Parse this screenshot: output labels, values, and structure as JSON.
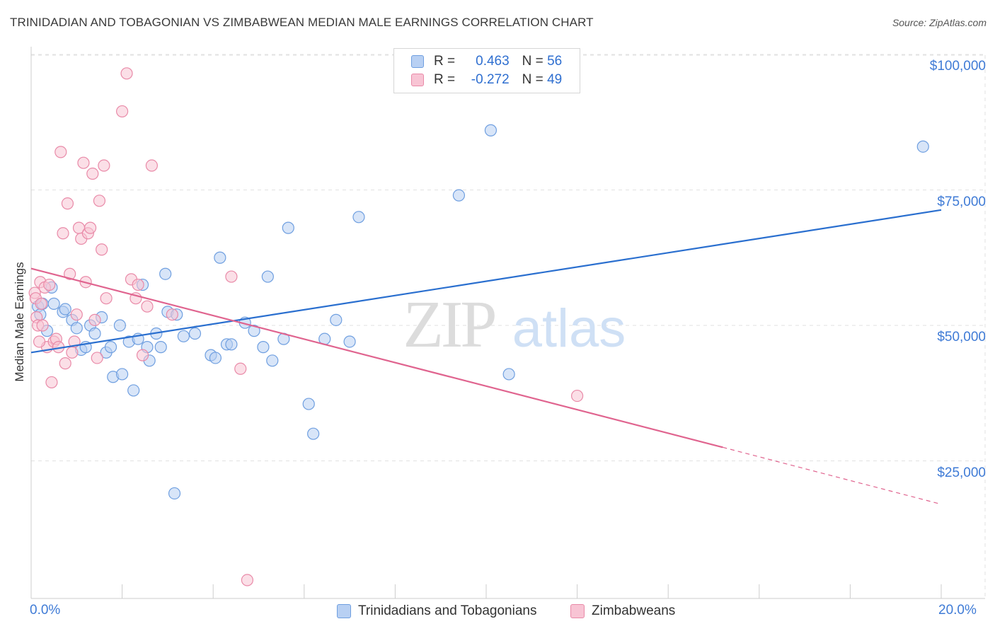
{
  "title": "TRINIDADIAN AND TOBAGONIAN VS ZIMBABWEAN MEDIAN MALE EARNINGS CORRELATION CHART",
  "source": "Source: ZipAtlas.com",
  "watermark": {
    "zip": "ZIP",
    "atlas": "atlas"
  },
  "legend": {
    "r_label": "R =",
    "n_label": "N =",
    "rows": [
      {
        "r": "0.463",
        "n": "56"
      },
      {
        "r": "-0.272",
        "n": "49"
      }
    ]
  },
  "colors": {
    "blue_fill": "#b8d0f3",
    "blue_stroke": "#6f9fe0",
    "blue_line": "#2a6fcf",
    "pink_fill": "#f8c4d4",
    "pink_stroke": "#e98aa8",
    "pink_line": "#e0648f",
    "grid": "#e2e2e2",
    "tick_label": "#3f7bd6"
  },
  "chart_data": {
    "type": "scatter",
    "title": "TRINIDADIAN AND TOBAGONIAN VS ZIMBABWEAN MEDIAN MALE EARNINGS CORRELATION CHART",
    "xlabel": "",
    "ylabel": "Median Male Earnings",
    "xlim": [
      0,
      20
    ],
    "ylim": [
      0,
      105000
    ],
    "x_tick_labels": [
      "0.0%",
      "20.0%"
    ],
    "y_ticks": [
      {
        "value": 25000,
        "label": "$25,000"
      },
      {
        "value": 50000,
        "label": "$50,000"
      },
      {
        "value": 75000,
        "label": "$75,000"
      },
      {
        "value": 100000,
        "label": "$100,000"
      }
    ],
    "grid": true,
    "legend_position": "bottom",
    "series": [
      {
        "name": "Trinidadians and Tobagonians",
        "color": "#6f9fe0",
        "trend": {
          "x": [
            0,
            20
          ],
          "y": [
            45000,
            71300
          ]
        },
        "points": [
          [
            0.15,
            53500
          ],
          [
            0.2,
            52000
          ],
          [
            0.25,
            54000
          ],
          [
            0.35,
            49000
          ],
          [
            0.45,
            57000
          ],
          [
            0.5,
            54000
          ],
          [
            0.7,
            52500
          ],
          [
            0.75,
            53000
          ],
          [
            0.9,
            51000
          ],
          [
            1.0,
            49500
          ],
          [
            1.1,
            45500
          ],
          [
            1.2,
            46000
          ],
          [
            1.3,
            50000
          ],
          [
            1.4,
            48500
          ],
          [
            1.55,
            51500
          ],
          [
            1.65,
            45000
          ],
          [
            1.75,
            46000
          ],
          [
            1.8,
            40500
          ],
          [
            1.95,
            50000
          ],
          [
            2.0,
            41000
          ],
          [
            2.15,
            47000
          ],
          [
            2.25,
            38000
          ],
          [
            2.35,
            47500
          ],
          [
            2.45,
            57500
          ],
          [
            2.55,
            46000
          ],
          [
            2.6,
            43500
          ],
          [
            2.75,
            48500
          ],
          [
            2.85,
            46000
          ],
          [
            2.95,
            59500
          ],
          [
            3.0,
            52500
          ],
          [
            3.15,
            19000
          ],
          [
            3.2,
            52000
          ],
          [
            3.35,
            48000
          ],
          [
            3.6,
            48500
          ],
          [
            3.95,
            44500
          ],
          [
            4.05,
            44000
          ],
          [
            4.15,
            62500
          ],
          [
            4.3,
            46500
          ],
          [
            4.4,
            46500
          ],
          [
            4.7,
            50500
          ],
          [
            4.9,
            49000
          ],
          [
            5.1,
            46000
          ],
          [
            5.2,
            59000
          ],
          [
            5.3,
            43500
          ],
          [
            5.55,
            47500
          ],
          [
            5.65,
            68000
          ],
          [
            6.1,
            35500
          ],
          [
            6.2,
            30000
          ],
          [
            6.45,
            47500
          ],
          [
            6.7,
            51000
          ],
          [
            7.0,
            47000
          ],
          [
            7.2,
            70000
          ],
          [
            9.4,
            74000
          ],
          [
            10.1,
            86000
          ],
          [
            10.5,
            41000
          ],
          [
            19.6,
            83000
          ]
        ]
      },
      {
        "name": "Zimbabweans",
        "color": "#e98aa8",
        "trend": {
          "x": [
            0,
            15.2
          ],
          "y": [
            60500,
            27500
          ]
        },
        "trend_dashed": {
          "x": [
            15.2,
            20
          ],
          "y": [
            27500,
            17000
          ]
        },
        "points": [
          [
            0.08,
            56000
          ],
          [
            0.1,
            55000
          ],
          [
            0.12,
            51500
          ],
          [
            0.15,
            50000
          ],
          [
            0.2,
            58000
          ],
          [
            0.22,
            54000
          ],
          [
            0.25,
            50000
          ],
          [
            0.3,
            57000
          ],
          [
            0.35,
            46000
          ],
          [
            0.4,
            57500
          ],
          [
            0.45,
            39500
          ],
          [
            0.5,
            47000
          ],
          [
            0.55,
            47500
          ],
          [
            0.6,
            46000
          ],
          [
            0.65,
            82000
          ],
          [
            0.7,
            67000
          ],
          [
            0.75,
            43000
          ],
          [
            0.8,
            72500
          ],
          [
            0.85,
            59500
          ],
          [
            0.9,
            45000
          ],
          [
            0.95,
            47000
          ],
          [
            1.0,
            52000
          ],
          [
            1.05,
            68000
          ],
          [
            1.1,
            66000
          ],
          [
            1.15,
            80000
          ],
          [
            1.2,
            58000
          ],
          [
            1.25,
            67000
          ],
          [
            1.3,
            68000
          ],
          [
            1.35,
            78000
          ],
          [
            1.4,
            51000
          ],
          [
            1.45,
            44000
          ],
          [
            1.5,
            73000
          ],
          [
            1.55,
            64000
          ],
          [
            1.6,
            79500
          ],
          [
            1.65,
            55000
          ],
          [
            2.0,
            89500
          ],
          [
            2.1,
            96500
          ],
          [
            2.2,
            58500
          ],
          [
            2.3,
            55000
          ],
          [
            2.35,
            57500
          ],
          [
            2.45,
            44500
          ],
          [
            2.55,
            53500
          ],
          [
            2.65,
            79500
          ],
          [
            3.1,
            52000
          ],
          [
            4.4,
            59000
          ],
          [
            4.6,
            42000
          ],
          [
            4.75,
            3000
          ],
          [
            12.0,
            37000
          ],
          [
            0.18,
            47000
          ]
        ]
      }
    ]
  },
  "bottom_legend": [
    {
      "label": "Trinidadians and Tobagonians"
    },
    {
      "label": "Zimbabweans"
    }
  ]
}
